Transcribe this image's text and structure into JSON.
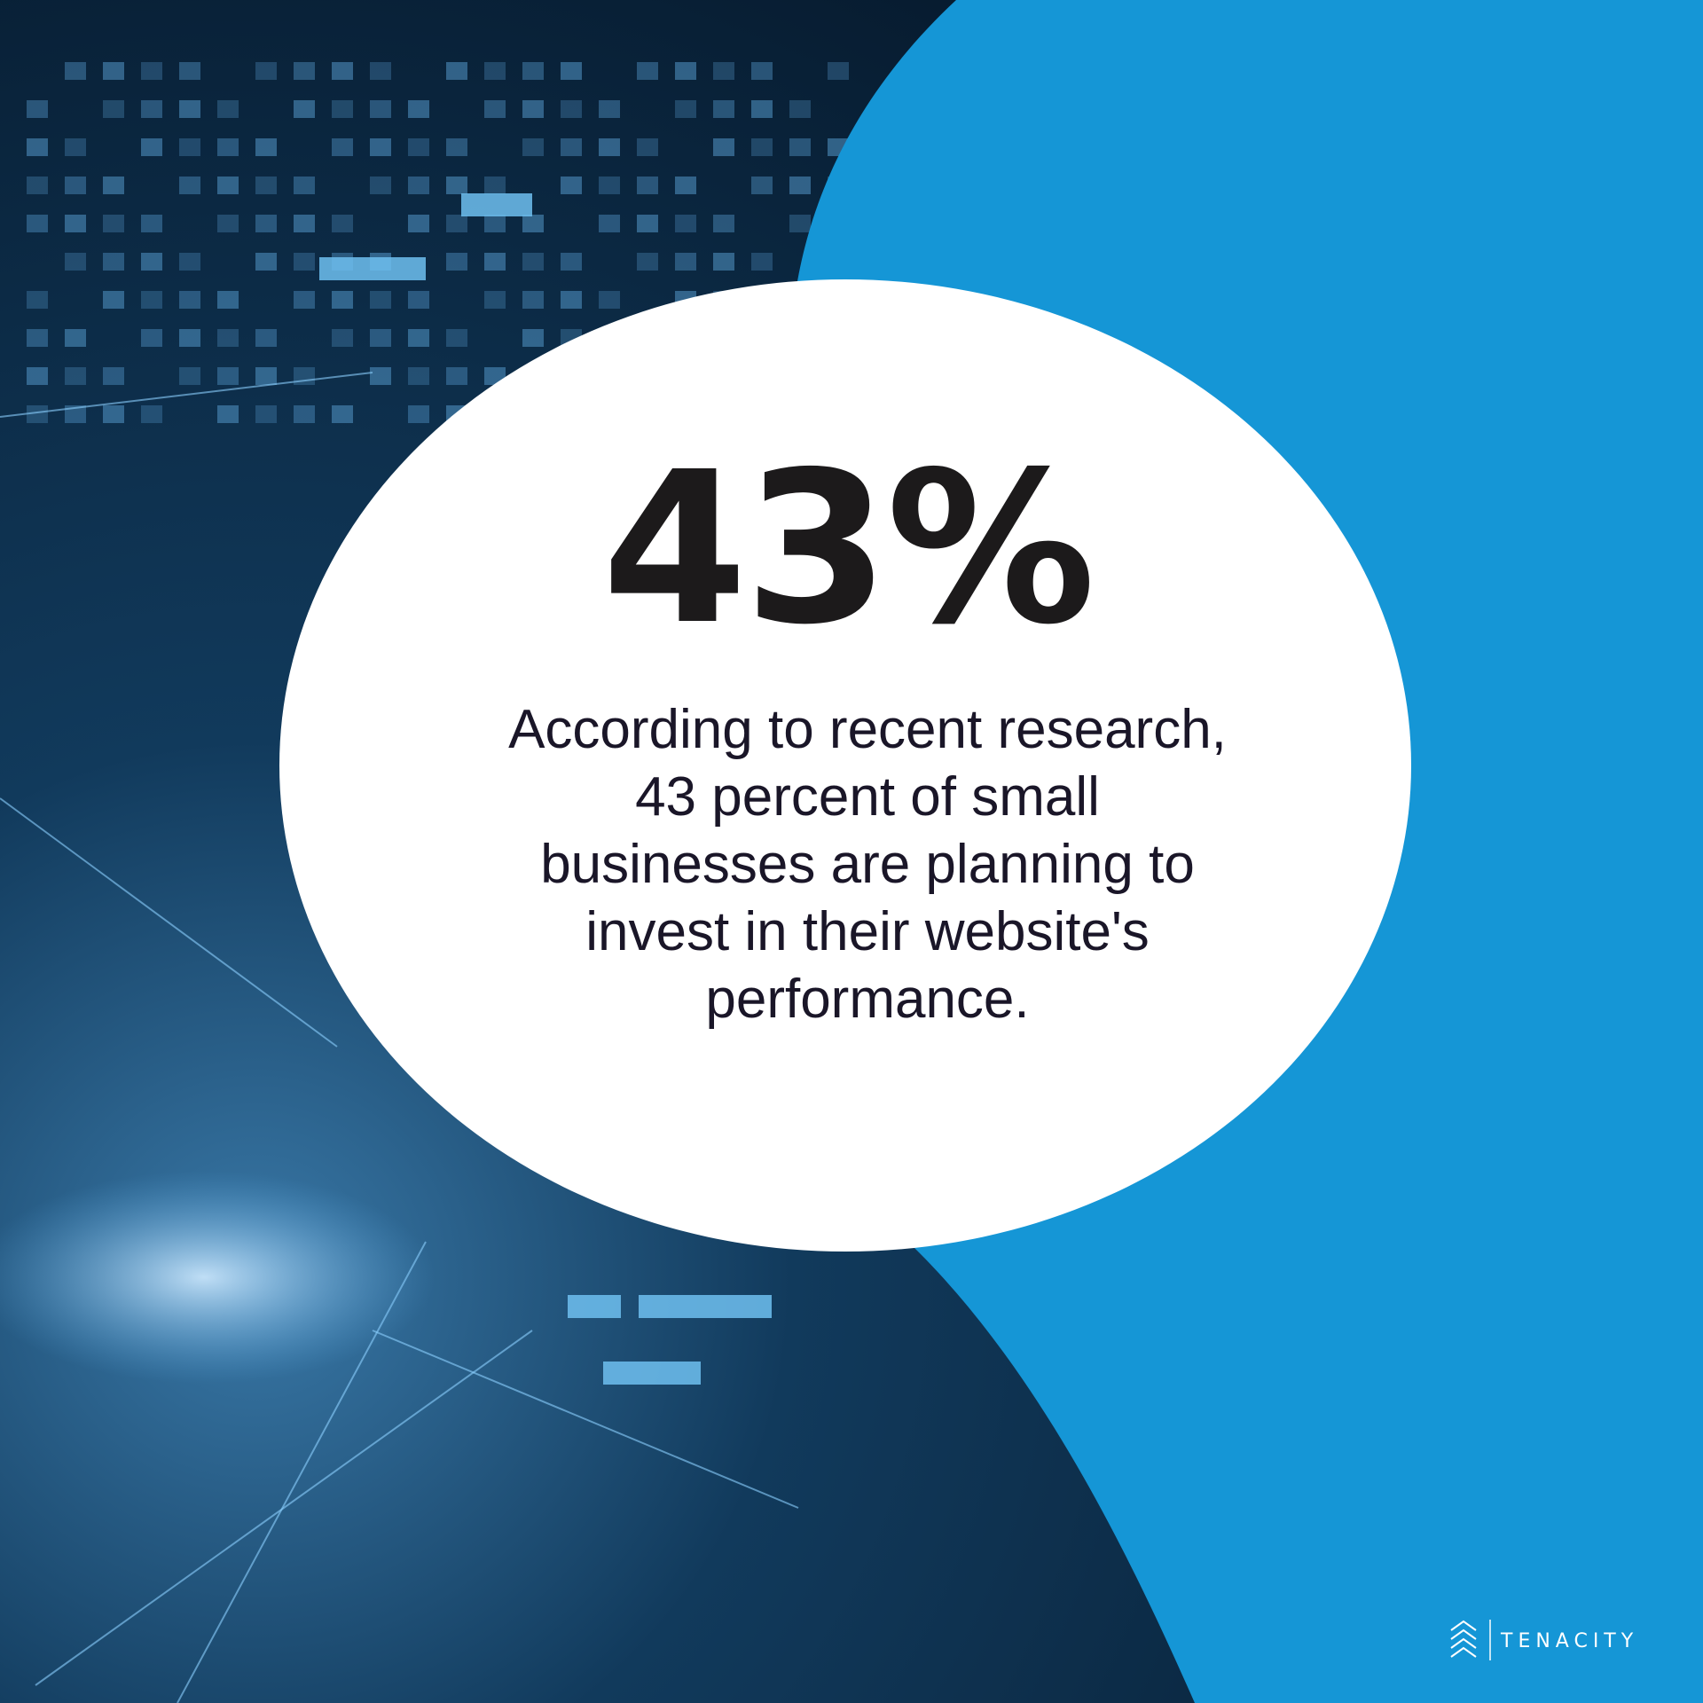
{
  "stat": "43%",
  "body": {
    "lines": [
      "According to recent research,",
      "43 percent of small",
      "businesses are planning to",
      "invest in their website's",
      "performance."
    ]
  },
  "brand": "TENACITY"
}
